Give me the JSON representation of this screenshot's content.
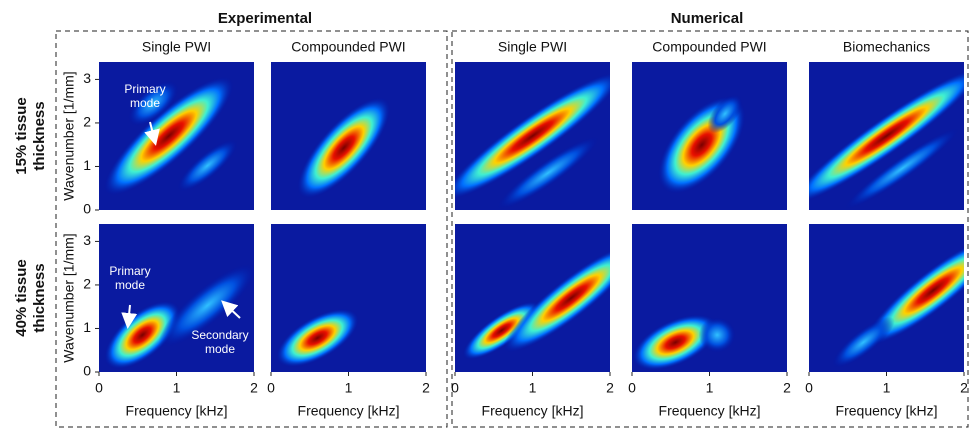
{
  "groups": [
    {
      "title": "Experimental"
    },
    {
      "title": "Numerical"
    }
  ],
  "columns": [
    "Single PWI",
    "Compounded PWI",
    "Single PWI",
    "Compounded PWI",
    "Biomechanics"
  ],
  "rows": [
    {
      "lines": [
        "15% tissue",
        "thickness"
      ]
    },
    {
      "lines": [
        "40% tissue",
        "thickness"
      ]
    }
  ],
  "x_axis": {
    "label": "Frequency [kHz]",
    "lim": [
      0,
      2
    ],
    "ticks": [
      0,
      1,
      2
    ]
  },
  "y_axis": {
    "label": "Wavenumber [1/mm]",
    "lim": [
      0,
      3.4
    ],
    "ticks": [
      0,
      1,
      2,
      3
    ]
  },
  "annotations": [
    {
      "lines": [
        "Primary",
        "mode"
      ]
    },
    {
      "lines": [
        "Primary",
        "mode"
      ]
    },
    {
      "lines": [
        "Secondary",
        "mode"
      ]
    }
  ]
}
